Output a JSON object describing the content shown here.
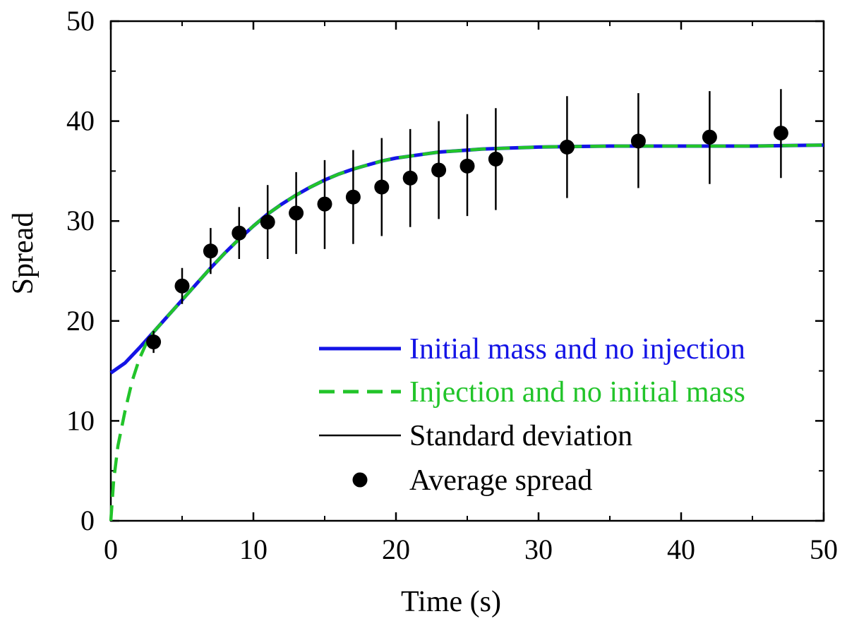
{
  "chart_data": {
    "type": "line",
    "title": "",
    "xlabel": "Time (s)",
    "ylabel": "Spread",
    "xlim": [
      0,
      50
    ],
    "ylim": [
      0,
      50
    ],
    "xticks": [
      0,
      10,
      20,
      30,
      40,
      50
    ],
    "yticks": [
      0,
      10,
      20,
      30,
      40,
      50
    ],
    "xtick_labels": [
      "0",
      "10",
      "20",
      "30",
      "40",
      "50"
    ],
    "ytick_labels": [
      "0",
      "10",
      "20",
      "30",
      "40",
      "50"
    ],
    "grid": false,
    "legend_position": "bottom-right",
    "series": [
      {
        "name": "Initial mass and no injection",
        "kind": "line",
        "style": "solid",
        "color": "#1414e6",
        "x": [
          0,
          1,
          2,
          3,
          4,
          5,
          6,
          7,
          8,
          9,
          10,
          11,
          12,
          13,
          14,
          15,
          16,
          17,
          18,
          19,
          20,
          21,
          22,
          23,
          24,
          25,
          26,
          27,
          28,
          29,
          30,
          32,
          35,
          40,
          45,
          50
        ],
        "y": [
          14.8,
          15.8,
          17.3,
          18.9,
          20.5,
          22.1,
          23.7,
          25.3,
          26.8,
          28.2,
          29.5,
          30.7,
          31.7,
          32.6,
          33.4,
          34.1,
          34.7,
          35.2,
          35.6,
          36.0,
          36.3,
          36.5,
          36.7,
          36.9,
          37.0,
          37.1,
          37.2,
          37.25,
          37.3,
          37.35,
          37.4,
          37.45,
          37.5,
          37.5,
          37.5,
          37.6
        ]
      },
      {
        "name": "Injection and no initial mass",
        "kind": "line",
        "style": "dashed",
        "color": "#22c42a",
        "x": [
          0,
          0.2,
          0.5,
          1,
          1.5,
          2,
          2.5,
          3,
          4,
          5,
          6,
          7,
          8,
          9,
          10,
          11,
          12,
          13,
          14,
          15,
          16,
          17,
          18,
          19,
          20,
          21,
          22,
          23,
          24,
          25,
          26,
          27,
          28,
          29,
          30,
          32,
          35,
          40,
          45,
          50
        ],
        "y": [
          0,
          4,
          7.5,
          11,
          14,
          16.2,
          17.8,
          18.9,
          20.5,
          22.1,
          23.7,
          25.3,
          26.8,
          28.2,
          29.5,
          30.7,
          31.7,
          32.6,
          33.4,
          34.1,
          34.7,
          35.2,
          35.6,
          36.0,
          36.3,
          36.5,
          36.7,
          36.9,
          37.0,
          37.1,
          37.2,
          37.25,
          37.3,
          37.35,
          37.4,
          37.45,
          37.5,
          37.5,
          37.5,
          37.6
        ]
      },
      {
        "name": "Average spread",
        "kind": "scatter",
        "color": "#000000",
        "x": [
          3,
          5,
          7,
          9,
          11,
          13,
          15,
          17,
          19,
          21,
          23,
          25,
          27,
          32,
          37,
          42,
          47
        ],
        "y": [
          17.9,
          23.5,
          27.0,
          28.8,
          29.9,
          30.8,
          31.7,
          32.4,
          33.4,
          34.3,
          35.1,
          35.5,
          36.2,
          37.4,
          38.0,
          38.4,
          38.8
        ],
        "error_bar_name": "Standard deviation",
        "error_low": [
          16.8,
          21.7,
          24.7,
          26.2,
          26.2,
          26.7,
          27.2,
          27.7,
          28.5,
          29.4,
          30.2,
          30.5,
          31.1,
          32.3,
          33.3,
          33.7,
          34.3
        ],
        "error_high": [
          19.0,
          25.3,
          29.3,
          31.4,
          33.6,
          34.9,
          36.1,
          37.1,
          38.3,
          39.2,
          40.0,
          40.7,
          41.3,
          42.5,
          42.8,
          43.0,
          43.2
        ]
      }
    ],
    "legend": [
      {
        "label": "Initial mass and no injection",
        "marker": "solid-line",
        "color": "#1414e6",
        "text_color": "#1414e6"
      },
      {
        "label": "Injection and no initial mass",
        "marker": "dashed-line",
        "color": "#22c42a",
        "text_color": "#22c42a"
      },
      {
        "label": "Standard deviation",
        "marker": "thin-line",
        "color": "#000000",
        "text_color": "#000000"
      },
      {
        "label": "Average spread",
        "marker": "dot",
        "color": "#000000",
        "text_color": "#000000"
      }
    ]
  }
}
